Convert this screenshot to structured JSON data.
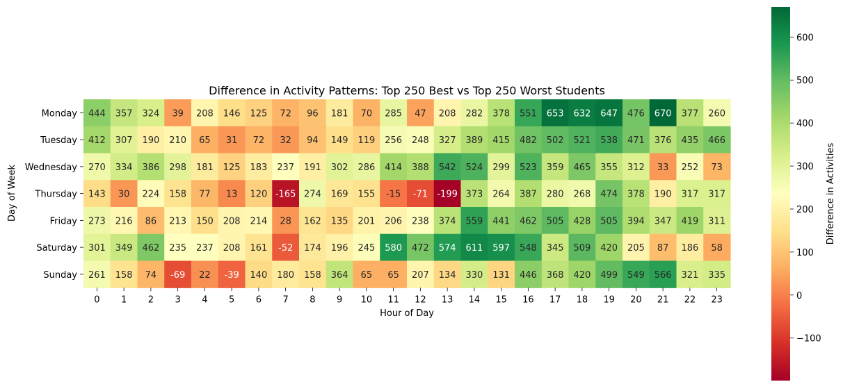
{
  "chart_data": {
    "type": "heatmap",
    "title": "Difference in Activity Patterns: Top 250 Best vs Top 250 Worst Students",
    "xlabel": "Hour of Day",
    "ylabel": "Day of Week",
    "x_categories": [
      "0",
      "1",
      "2",
      "3",
      "4",
      "5",
      "6",
      "7",
      "8",
      "9",
      "10",
      "11",
      "12",
      "13",
      "14",
      "15",
      "16",
      "17",
      "18",
      "19",
      "20",
      "21",
      "22",
      "23"
    ],
    "y_categories": [
      "Monday",
      "Tuesday",
      "Wednesday",
      "Thursday",
      "Friday",
      "Saturday",
      "Sunday"
    ],
    "values": [
      [
        444,
        357,
        324,
        39,
        208,
        146,
        125,
        72,
        96,
        181,
        70,
        285,
        47,
        208,
        282,
        378,
        551,
        653,
        632,
        647,
        476,
        670,
        377,
        260
      ],
      [
        412,
        307,
        190,
        210,
        65,
        31,
        72,
        32,
        94,
        149,
        119,
        256,
        248,
        327,
        389,
        415,
        482,
        502,
        521,
        538,
        471,
        376,
        435,
        466
      ],
      [
        270,
        334,
        386,
        298,
        181,
        125,
        183,
        237,
        191,
        302,
        286,
        414,
        388,
        542,
        524,
        299,
        523,
        359,
        465,
        355,
        312,
        33,
        252,
        73
      ],
      [
        143,
        30,
        224,
        158,
        77,
        13,
        120,
        -165,
        274,
        169,
        155,
        -15,
        -71,
        -199,
        373,
        264,
        387,
        280,
        268,
        474,
        378,
        190,
        317,
        317
      ],
      [
        273,
        216,
        86,
        213,
        150,
        208,
        214,
        28,
        162,
        135,
        201,
        206,
        238,
        374,
        559,
        441,
        462,
        505,
        428,
        505,
        394,
        347,
        419,
        311
      ],
      [
        301,
        349,
        462,
        235,
        237,
        208,
        161,
        -52,
        174,
        196,
        245,
        580,
        472,
        574,
        611,
        597,
        548,
        345,
        509,
        420,
        205,
        87,
        186,
        58
      ],
      [
        261,
        158,
        74,
        -69,
        22,
        -39,
        140,
        180,
        158,
        364,
        65,
        65,
        207,
        134,
        330,
        131,
        446,
        368,
        420,
        499,
        549,
        566,
        321,
        335
      ]
    ],
    "colormap": "RdYlGn",
    "value_range": [
      -199,
      670
    ],
    "colorbar": {
      "label": "Difference in Activities",
      "ticks": [
        "600",
        "500",
        "400",
        "300",
        "200",
        "100",
        "0",
        "−100"
      ]
    },
    "colors": {
      "red_end": "#a50026",
      "yellow_mid": "#ffffbf",
      "green_end": "#006837"
    }
  }
}
